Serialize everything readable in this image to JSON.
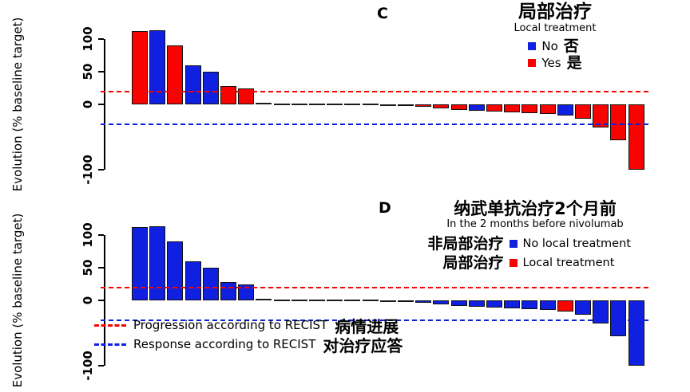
{
  "colors": {
    "blue": "#1020E0",
    "red": "#F80400",
    "zero": "#1a1a1a"
  },
  "ylabel": "Evolution (% baseline target)",
  "yticks": [
    100,
    50,
    0,
    -100
  ],
  "panel_labels": {
    "c": "C",
    "d": "D"
  },
  "chart_data": [
    {
      "type": "bar",
      "panel": "C",
      "title_zh": "局部治疗",
      "title_en": "Local treatment",
      "ylabel": "Evolution (% baseline target)",
      "ylim": [
        -110,
        120
      ],
      "yticks": [
        100,
        50,
        0,
        -100
      ],
      "grid": false,
      "legend_position": "top-right",
      "values": [
        112,
        113,
        90,
        60,
        50,
        28,
        25,
        1,
        0,
        0,
        0,
        0,
        0,
        0,
        -1,
        -2,
        -4,
        -6,
        -8,
        -10,
        -11,
        -12,
        -13,
        -15,
        -17,
        -22,
        -35,
        -55,
        -100
      ],
      "colors": [
        "r",
        "b",
        "r",
        "b",
        "b",
        "r",
        "r",
        "z",
        "z",
        "z",
        "z",
        "z",
        "z",
        "z",
        "z",
        "r",
        "r",
        "r",
        "r",
        "b",
        "r",
        "r",
        "r",
        "r",
        "b",
        "r",
        "r",
        "r",
        "r"
      ],
      "ref_lines": [
        {
          "value": 20,
          "color": "red",
          "style": "dashed",
          "meaning": "Progression according to RECIST"
        },
        {
          "value": -30,
          "color": "blue",
          "style": "dashed",
          "meaning": "Response according to RECIST"
        }
      ]
    },
    {
      "type": "bar",
      "panel": "D",
      "title_zh": "纳武单抗治疗2个月前",
      "title_en": "In the 2 months before nivolumab",
      "ylabel": "Evolution (% baseline target)",
      "ylim": [
        -110,
        120
      ],
      "yticks": [
        100,
        50,
        0,
        -100
      ],
      "grid": false,
      "legend_position": "top-right",
      "values": [
        112,
        113,
        90,
        60,
        50,
        28,
        25,
        1,
        0,
        0,
        0,
        0,
        0,
        0,
        -1,
        -2,
        -4,
        -6,
        -8,
        -10,
        -11,
        -12,
        -13,
        -15,
        -17,
        -22,
        -35,
        -55,
        -100
      ],
      "colors": [
        "b",
        "b",
        "b",
        "b",
        "b",
        "b",
        "b",
        "z",
        "z",
        "z",
        "z",
        "z",
        "z",
        "z",
        "z",
        "b",
        "b",
        "b",
        "b",
        "b",
        "b",
        "b",
        "b",
        "b",
        "r",
        "b",
        "b",
        "b",
        "b"
      ],
      "ref_lines": [
        {
          "value": 20,
          "color": "red",
          "style": "dashed",
          "meaning": "Progression according to RECIST"
        },
        {
          "value": -30,
          "color": "blue",
          "style": "dashed",
          "meaning": "Response according to RECIST"
        }
      ]
    }
  ],
  "legend_c": {
    "title_zh": "局部治疗",
    "title_en": "Local treatment",
    "no_en": "No",
    "no_zh": "否",
    "yes_en": "Yes",
    "yes_zh": "是"
  },
  "legend_d": {
    "title_zh": "纳武单抗治疗2个月前",
    "title_en": "In the 2 months before nivolumab",
    "no_zh": "非局部治疗",
    "no_en": "No local treatment",
    "yes_zh": "局部治疗",
    "yes_en": "Local treatment"
  },
  "recist": {
    "prog_en": "Progression according to RECIST",
    "prog_zh": "病情进展",
    "resp_en": "Response according to RECIST",
    "resp_zh": "对治疗应答"
  }
}
